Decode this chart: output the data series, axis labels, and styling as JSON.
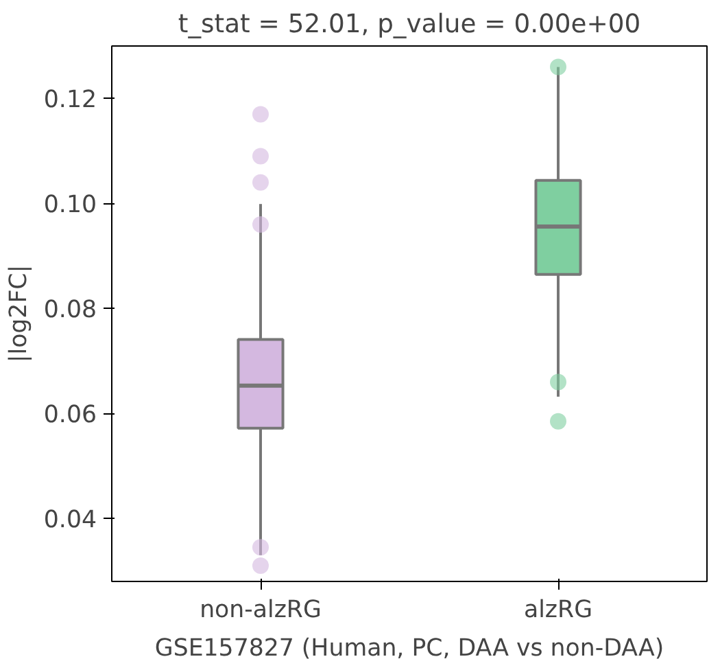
{
  "chart_data": {
    "type": "box",
    "title": "t_stat = 52.01, p_value = 0.00e+00",
    "xlabel": "GSE157827 (Human, PC, DAA vs non-DAA)",
    "ylabel": "|log2FC|",
    "categories": [
      "non-alzRG",
      "alzRG"
    ],
    "colors": [
      "#d4b8e0",
      "#7fcfa0"
    ],
    "boxes": [
      {
        "low": 0.033,
        "q1": 0.0572,
        "median": 0.0653,
        "q3": 0.0741,
        "high": 0.0999
      },
      {
        "low": 0.0632,
        "q1": 0.0865,
        "median": 0.0956,
        "q3": 0.1044,
        "high": 0.126
      }
    ],
    "series": [
      {
        "type": "scatter",
        "color": "#d4b8e0",
        "x": [
          "non-alzRG",
          "non-alzRG",
          "non-alzRG",
          "non-alzRG",
          "non-alzRG",
          "non-alzRG"
        ],
        "values": [
          0.117,
          0.109,
          0.104,
          0.096,
          0.0345,
          0.031
        ]
      },
      {
        "type": "scatter",
        "color": "#7fcfa0",
        "x": [
          "alzRG",
          "alzRG",
          "alzRG"
        ],
        "values": [
          0.126,
          0.066,
          0.0585
        ]
      }
    ],
    "ylim": [
      0.028,
      0.13
    ],
    "yticks": [
      0.04,
      0.06,
      0.08,
      {
        "value": 0.1,
        "label": "0.10"
      },
      0.12
    ],
    "grid": false
  }
}
